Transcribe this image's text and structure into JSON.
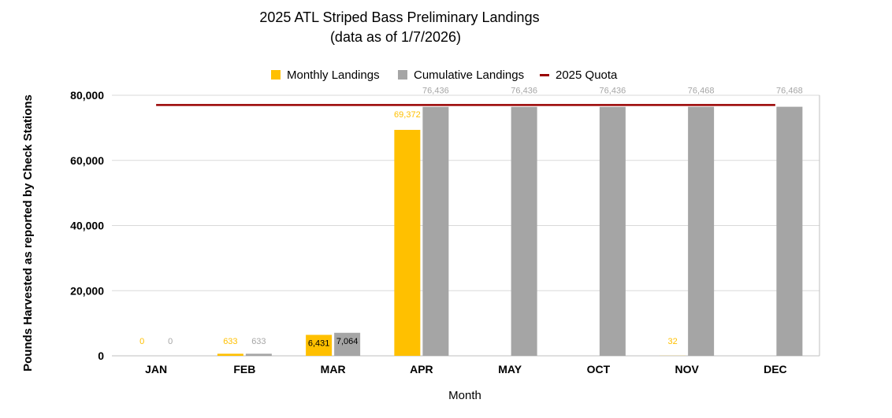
{
  "chart_data": {
    "type": "bar",
    "title": "2025 ATL Striped Bass Preliminary Landings",
    "subtitle": "(data as of  1/7/2026)",
    "xlabel": "Month",
    "ylabel": "Pounds Harvested as reported by Check Stations",
    "categories": [
      "JAN",
      "FEB",
      "MAR",
      "APR",
      "MAY",
      "OCT",
      "NOV",
      "DEC"
    ],
    "ylim": [
      0,
      80000
    ],
    "yticks": [
      0,
      20000,
      40000,
      60000,
      80000
    ],
    "ytick_labels": [
      "0",
      "20,000",
      "40,000",
      "60,000",
      "80,000"
    ],
    "grid": true,
    "legend_position": "top",
    "legend": [
      "Monthly Landings",
      "Cumulative Landings",
      "2025 Quota"
    ],
    "series": [
      {
        "name": "Monthly Landings",
        "color": "#FFC000",
        "values": [
          0,
          633,
          6431,
          69372,
          null,
          null,
          32,
          null
        ],
        "labels": [
          "0",
          "633",
          "6,431",
          "69,372",
          "",
          "",
          "32",
          ""
        ]
      },
      {
        "name": "Cumulative Landings",
        "color": "#A5A5A5",
        "values": [
          0,
          633,
          7064,
          76436,
          76436,
          76436,
          76468,
          76468
        ],
        "labels": [
          "0",
          "633",
          "7,064",
          "76,436",
          "76,436",
          "76,436",
          "76,468",
          "76,468"
        ]
      }
    ],
    "quota": {
      "name": "2025 Quota",
      "value": 77000,
      "color": "#990000"
    }
  }
}
